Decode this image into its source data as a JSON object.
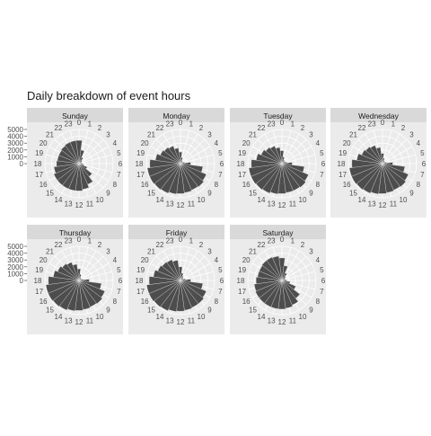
{
  "chart_data": {
    "type": "bar",
    "subtype": "polar-radial-faceted",
    "title": "Daily breakdown of event hours",
    "xlabel": "",
    "ylabel": "",
    "hour_labels": [
      "0",
      "1",
      "2",
      "3",
      "4",
      "5",
      "6",
      "7",
      "8",
      "9",
      "10",
      "11",
      "12",
      "13",
      "14",
      "15",
      "16",
      "17",
      "18",
      "19",
      "20",
      "21",
      "22",
      "23"
    ],
    "y_ticks": [
      "0",
      "1000",
      "2000",
      "3000",
      "4000",
      "5000"
    ],
    "ylim": [
      0,
      5000
    ],
    "grid": true,
    "facets": [
      {
        "name": "Sunday",
        "values": [
          3400,
          2000,
          1000,
          600,
          400,
          400,
          500,
          700,
          1300,
          2400,
          3300,
          3800,
          4000,
          4000,
          4000,
          4000,
          4000,
          3700,
          3300,
          3200,
          3200,
          3300,
          3400,
          3400
        ]
      },
      {
        "name": "Monday",
        "values": [
          1700,
          900,
          500,
          400,
          400,
          600,
          1500,
          3300,
          4100,
          4300,
          4200,
          4300,
          4400,
          4500,
          4700,
          4800,
          4900,
          4900,
          4500,
          3700,
          3200,
          3000,
          2800,
          2300
        ]
      },
      {
        "name": "Tuesday",
        "values": [
          1900,
          1000,
          600,
          500,
          500,
          700,
          1500,
          3300,
          4200,
          4400,
          4300,
          4300,
          4400,
          4500,
          4700,
          4800,
          4900,
          4900,
          4500,
          3800,
          3300,
          3000,
          2800,
          2400
        ]
      },
      {
        "name": "Wednesday",
        "values": [
          1500,
          800,
          500,
          400,
          400,
          600,
          1500,
          3300,
          4100,
          4300,
          4200,
          4300,
          4400,
          4500,
          4700,
          4800,
          4900,
          4900,
          4500,
          3800,
          3300,
          3100,
          2900,
          2400
        ]
      },
      {
        "name": "Thursday",
        "values": [
          1700,
          900,
          500,
          400,
          400,
          600,
          1500,
          3300,
          4100,
          4300,
          4200,
          4300,
          4400,
          4500,
          4700,
          4800,
          4900,
          4900,
          4500,
          3800,
          3400,
          3100,
          2900,
          2400
        ]
      },
      {
        "name": "Friday",
        "values": [
          2000,
          1100,
          700,
          500,
          500,
          700,
          1500,
          3300,
          4100,
          4300,
          4300,
          4400,
          4500,
          4600,
          4800,
          4900,
          5000,
          5000,
          4600,
          4000,
          3600,
          3400,
          3300,
          3000
        ]
      },
      {
        "name": "Saturday",
        "values": [
          3300,
          2200,
          1200,
          700,
          500,
          500,
          700,
          1200,
          2200,
          3300,
          3900,
          4100,
          4200,
          4200,
          4200,
          4200,
          4200,
          4100,
          3800,
          3600,
          3600,
          3700,
          3700,
          3600
        ]
      }
    ]
  }
}
